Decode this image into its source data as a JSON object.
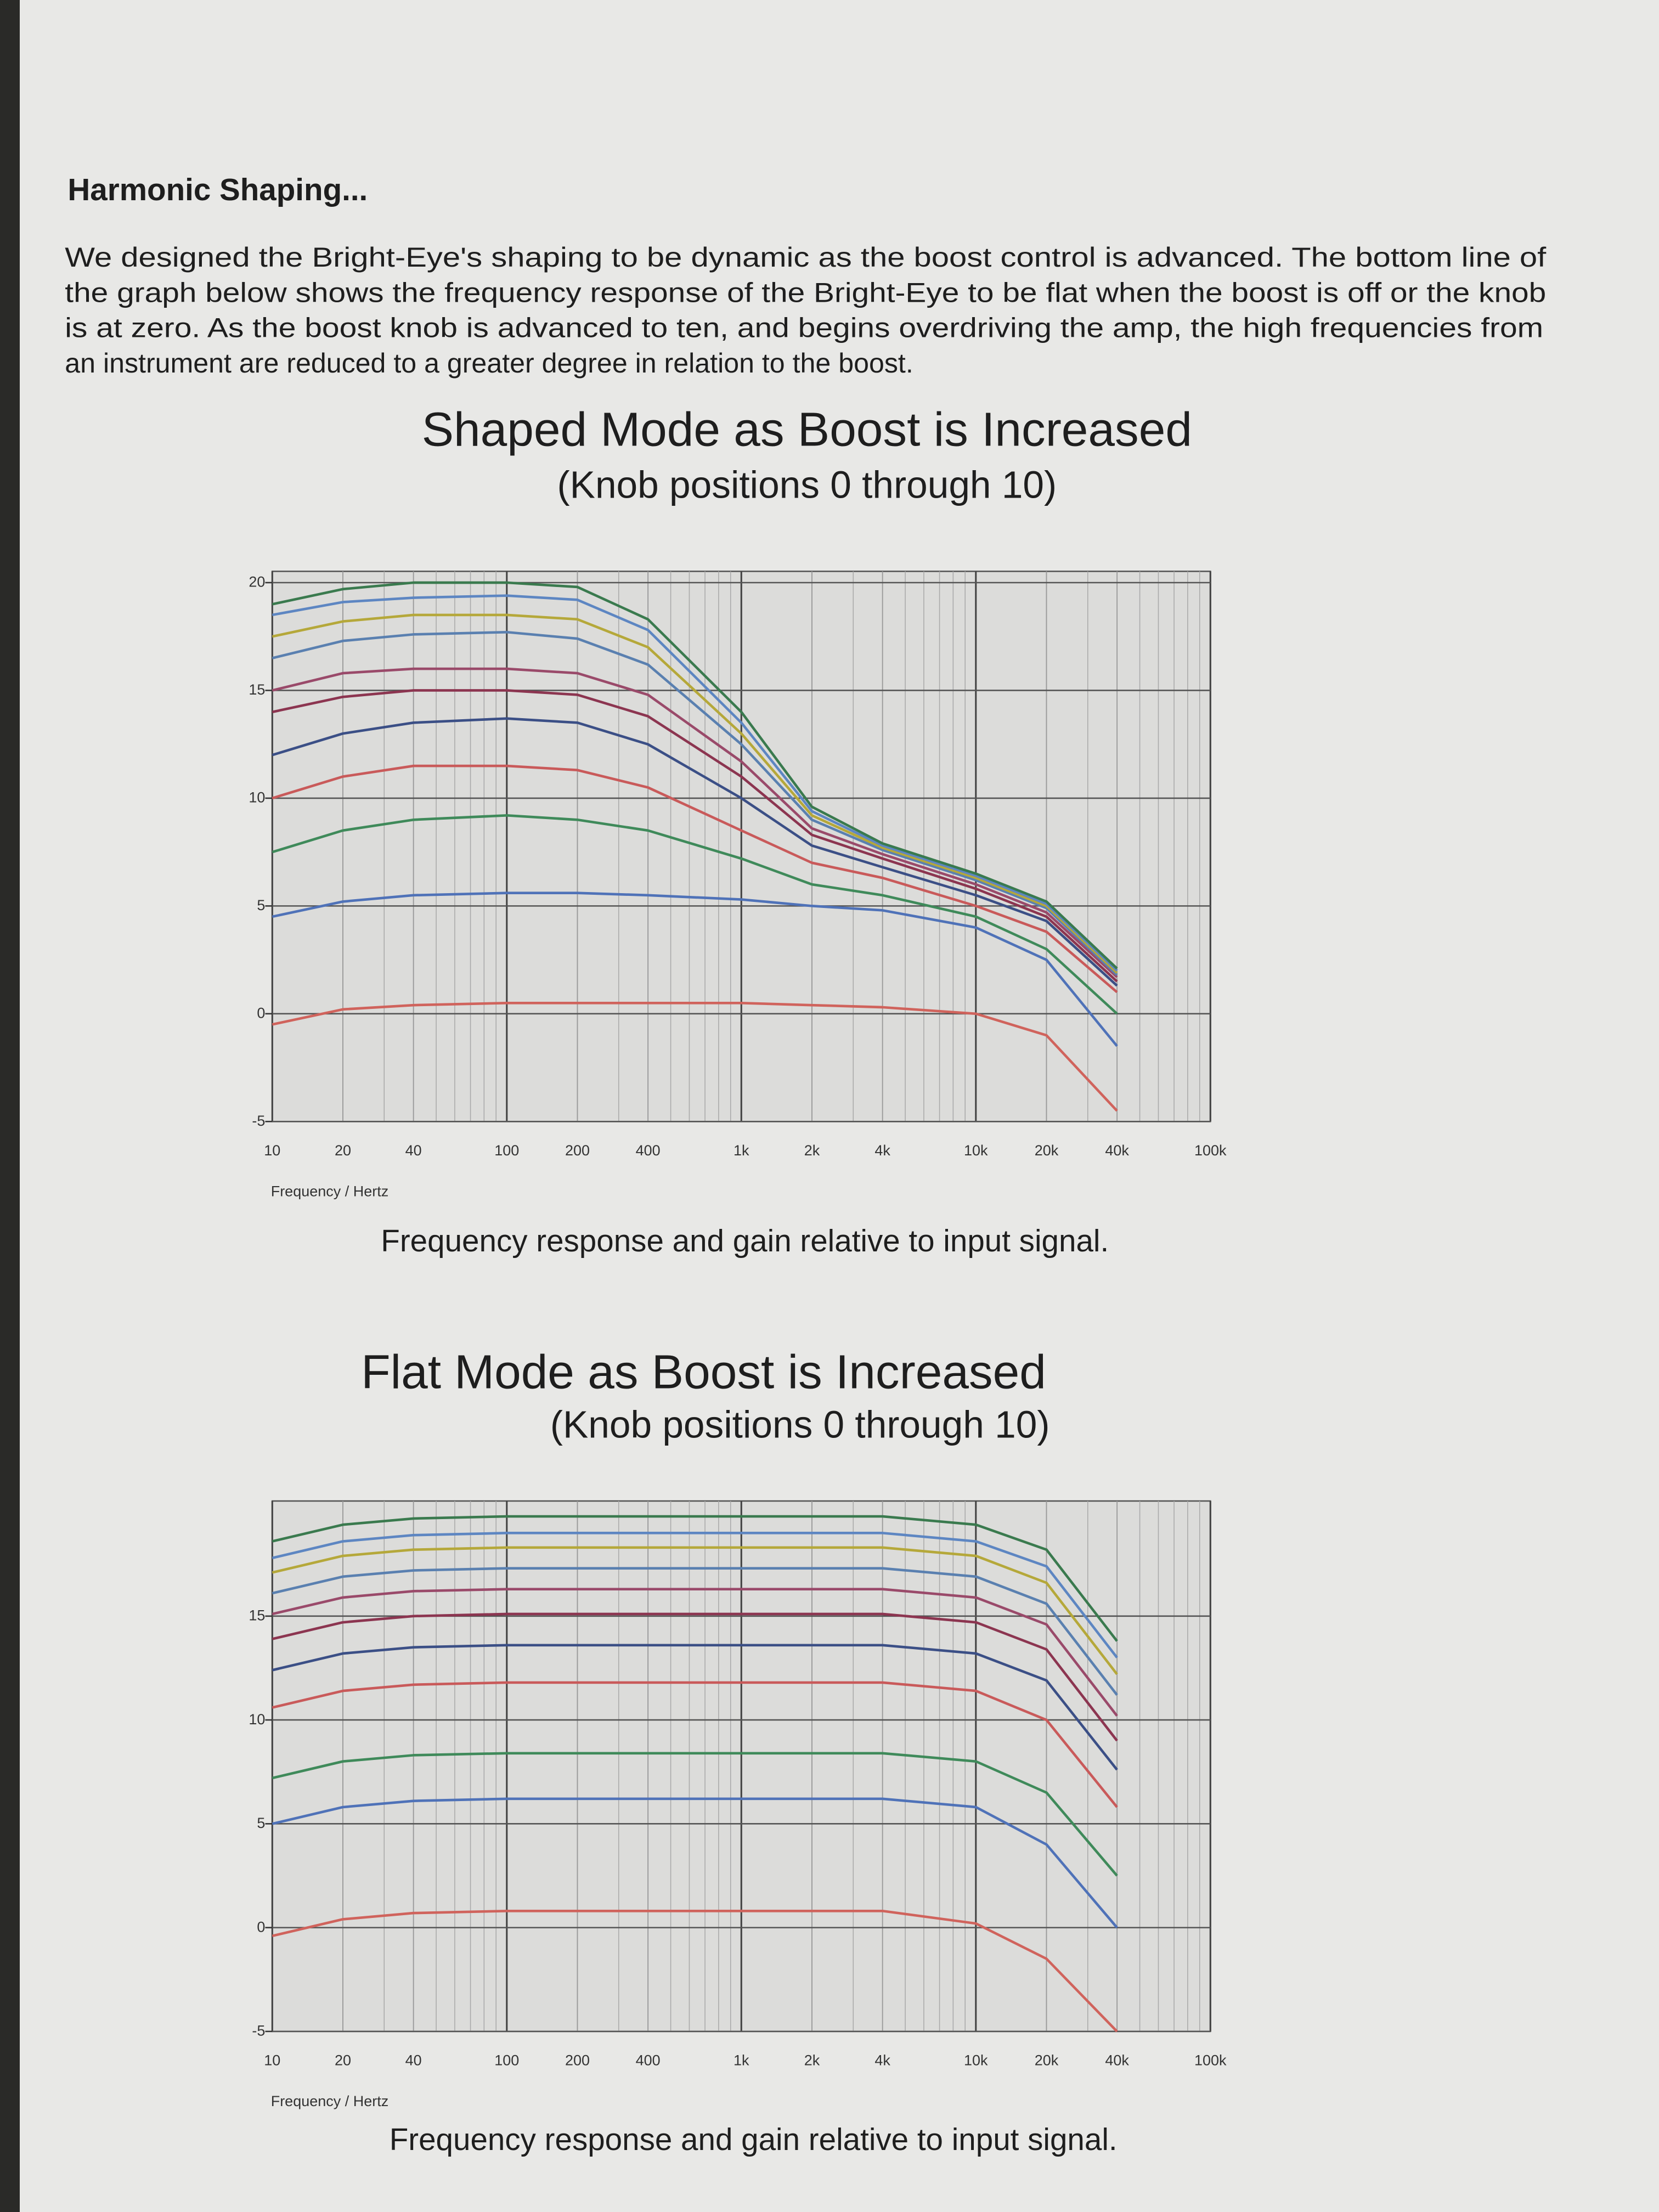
{
  "heading": "Harmonic Shaping...",
  "paragraph": [
    "We designed the Bright-Eye's shaping to be dynamic as the boost control is advanced.  The bottom line of",
    "the graph below shows the frequency response of the Bright-Eye to be flat when the boost is off or the knob",
    "is at zero.  As the boost knob is advanced to ten, and begins overdriving the amp, the high frequencies from",
    "an instrument are reduced to a greater degree in relation to the boost."
  ],
  "chart_data": [
    {
      "type": "line",
      "title": "Shaped Mode as Boost is Increased",
      "subtitle": "(Knob positions 0 through 10)",
      "x_label": "Frequency / Hertz",
      "caption": "Frequency response and gain relative to input signal.",
      "log_x": true,
      "grid": true,
      "xlim": [
        10,
        100000
      ],
      "ylim": [
        -5,
        20
      ],
      "xticks": [
        10,
        20,
        40,
        100,
        200,
        400,
        {
          "value": 1000,
          "label": "1k"
        },
        {
          "value": 2000,
          "label": "2k"
        },
        {
          "value": 4000,
          "label": "4k"
        },
        {
          "value": 10000,
          "label": "10k"
        },
        {
          "value": 20000,
          "label": "20k"
        },
        {
          "value": 40000,
          "label": "40k"
        },
        {
          "value": 100000,
          "label": "100k"
        }
      ],
      "yticks": [
        -5,
        0,
        5,
        10,
        15,
        20
      ],
      "x": [
        10,
        20,
        40,
        100,
        200,
        400,
        1000,
        2000,
        4000,
        10000,
        20000,
        40000
      ],
      "series": [
        {
          "color": "#d0635c",
          "values": [
            -0.5,
            0.2,
            0.4,
            0.5,
            0.5,
            0.5,
            0.5,
            0.4,
            0.3,
            0,
            -1,
            -4.5
          ]
        },
        {
          "color": "#4f72b8",
          "values": [
            4.5,
            5.2,
            5.5,
            5.6,
            5.6,
            5.5,
            5.3,
            5,
            4.8,
            4,
            2.5,
            -1.5
          ]
        },
        {
          "color": "#3f8a5a",
          "values": [
            7.5,
            8.5,
            9,
            9.2,
            9,
            8.5,
            7.2,
            6,
            5.5,
            4.5,
            3,
            0
          ]
        },
        {
          "color": "#c95a5a",
          "values": [
            10,
            11,
            11.5,
            11.5,
            11.3,
            10.5,
            8.5,
            7,
            6.3,
            5,
            3.8,
            1
          ]
        },
        {
          "color": "#3b4f86",
          "values": [
            12,
            13,
            13.5,
            13.7,
            13.5,
            12.5,
            10,
            7.8,
            6.8,
            5.5,
            4.3,
            1.3
          ]
        },
        {
          "color": "#8c3550",
          "values": [
            14,
            14.7,
            15,
            15,
            14.8,
            13.8,
            11,
            8.3,
            7.2,
            5.8,
            4.5,
            1.5
          ]
        },
        {
          "color": "#9a4a6a",
          "values": [
            15,
            15.8,
            16,
            16,
            15.8,
            14.8,
            11.7,
            8.6,
            7.4,
            6,
            4.7,
            1.7
          ]
        },
        {
          "color": "#5a80b0",
          "values": [
            16.5,
            17.3,
            17.6,
            17.7,
            17.4,
            16.2,
            12.5,
            9,
            7.6,
            6.2,
            4.9,
            1.8
          ]
        },
        {
          "color": "#b5a83a",
          "values": [
            17.5,
            18.2,
            18.5,
            18.5,
            18.3,
            17,
            13,
            9.2,
            7.7,
            6.3,
            5,
            1.9
          ]
        },
        {
          "color": "#5d86c2",
          "values": [
            18.5,
            19.1,
            19.3,
            19.4,
            19.2,
            17.8,
            13.5,
            9.4,
            7.8,
            6.4,
            5.1,
            2
          ]
        },
        {
          "color": "#3a7a4e",
          "values": [
            19,
            19.7,
            20,
            20,
            19.8,
            18.3,
            14,
            9.6,
            7.9,
            6.5,
            5.2,
            2.1
          ]
        }
      ]
    },
    {
      "type": "line",
      "title": "Flat Mode as Boost is Increased",
      "subtitle": "(Knob positions 0 through 10)",
      "x_label": "Frequency / Hertz",
      "caption": "Frequency response and gain relative to input signal.",
      "log_x": true,
      "grid": true,
      "xlim": [
        10,
        100000
      ],
      "ylim": [
        -5,
        20
      ],
      "xticks": [
        10,
        20,
        40,
        100,
        200,
        400,
        {
          "value": 1000,
          "label": "1k"
        },
        {
          "value": 2000,
          "label": "2k"
        },
        {
          "value": 4000,
          "label": "4k"
        },
        {
          "value": 10000,
          "label": "10k"
        },
        {
          "value": 20000,
          "label": "20k"
        },
        {
          "value": 40000,
          "label": "40k"
        },
        {
          "value": 100000,
          "label": "100k"
        }
      ],
      "yticks": [
        -5,
        0,
        5,
        10,
        15
      ],
      "x": [
        10,
        20,
        40,
        100,
        200,
        400,
        1000,
        2000,
        4000,
        10000,
        20000,
        40000
      ],
      "series": [
        {
          "color": "#d0635c",
          "values": [
            -0.4,
            0.4,
            0.7,
            0.8,
            0.8,
            0.8,
            0.8,
            0.8,
            0.8,
            0.2,
            -1.5,
            -5
          ]
        },
        {
          "color": "#4f72b8",
          "values": [
            5,
            5.8,
            6.1,
            6.2,
            6.2,
            6.2,
            6.2,
            6.2,
            6.2,
            5.8,
            4,
            0
          ]
        },
        {
          "color": "#3f8a5a",
          "values": [
            7.2,
            8,
            8.3,
            8.4,
            8.4,
            8.4,
            8.4,
            8.4,
            8.4,
            8,
            6.5,
            2.5
          ]
        },
        {
          "color": "#c95a5a",
          "values": [
            10.6,
            11.4,
            11.7,
            11.8,
            11.8,
            11.8,
            11.8,
            11.8,
            11.8,
            11.4,
            10,
            5.8
          ]
        },
        {
          "color": "#3b4f86",
          "values": [
            12.4,
            13.2,
            13.5,
            13.6,
            13.6,
            13.6,
            13.6,
            13.6,
            13.6,
            13.2,
            11.9,
            7.6
          ]
        },
        {
          "color": "#8c3550",
          "values": [
            13.9,
            14.7,
            15,
            15.1,
            15.1,
            15.1,
            15.1,
            15.1,
            15.1,
            14.7,
            13.4,
            9
          ]
        },
        {
          "color": "#9a4a6a",
          "values": [
            15.1,
            15.9,
            16.2,
            16.3,
            16.3,
            16.3,
            16.3,
            16.3,
            16.3,
            15.9,
            14.6,
            10.2
          ]
        },
        {
          "color": "#5a80b0",
          "values": [
            16.1,
            16.9,
            17.2,
            17.3,
            17.3,
            17.3,
            17.3,
            17.3,
            17.3,
            16.9,
            15.6,
            11.2
          ]
        },
        {
          "color": "#b5a83a",
          "values": [
            17.1,
            17.9,
            18.2,
            18.3,
            18.3,
            18.3,
            18.3,
            18.3,
            18.3,
            17.9,
            16.6,
            12.2
          ]
        },
        {
          "color": "#5d86c2",
          "values": [
            17.8,
            18.6,
            18.9,
            19,
            19,
            19,
            19,
            19,
            19,
            18.6,
            17.4,
            13
          ]
        },
        {
          "color": "#3a7a4e",
          "values": [
            18.6,
            19.4,
            19.7,
            19.8,
            19.8,
            19.8,
            19.8,
            19.8,
            19.8,
            19.4,
            18.2,
            13.8
          ]
        }
      ]
    }
  ]
}
